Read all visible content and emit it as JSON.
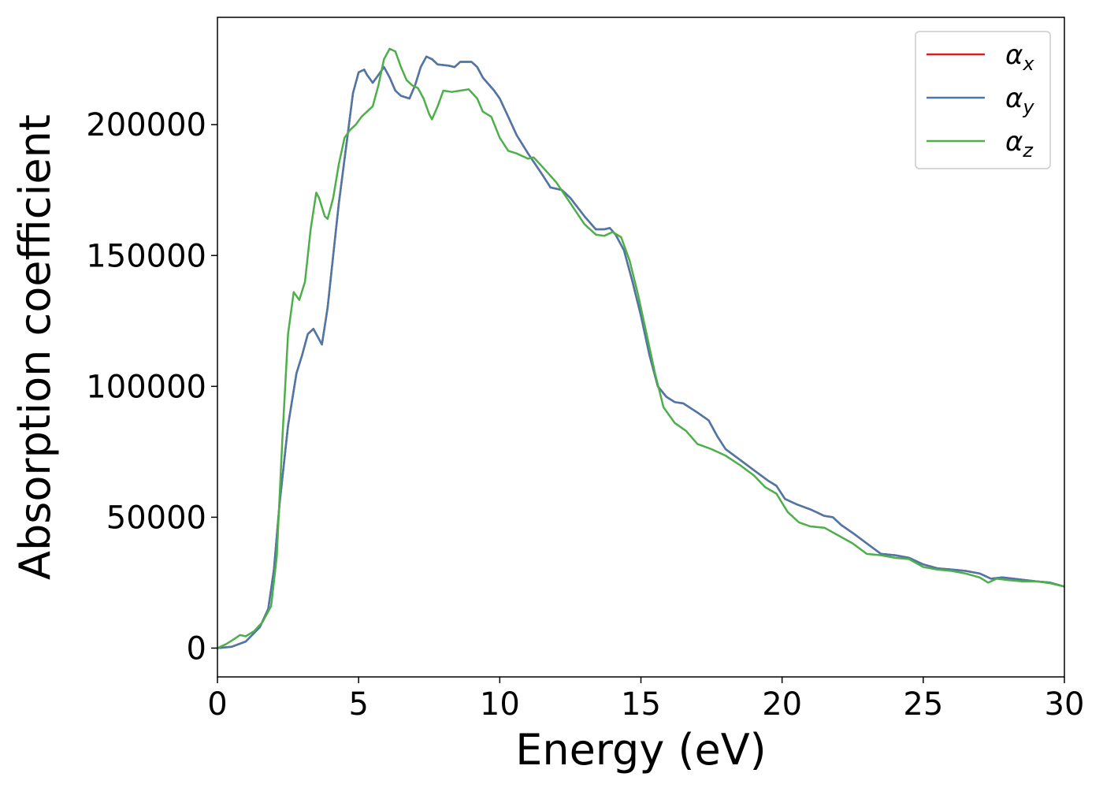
{
  "chart_data": {
    "type": "line",
    "title": "",
    "xlabel": "Energy (eV)",
    "ylabel": "Absorption coefficient",
    "xlim": [
      0,
      30
    ],
    "ylim": [
      -11000,
      241000
    ],
    "xticks": [
      0,
      5,
      10,
      15,
      20,
      25,
      30
    ],
    "yticks": [
      0,
      50000,
      100000,
      150000,
      200000
    ],
    "grid": false,
    "legend_position": "top-right",
    "series": [
      {
        "name": "α",
        "name_subscript": "x",
        "color": "#e41a1c",
        "points": [
          [
            0,
            0
          ],
          [
            0.5,
            500
          ],
          [
            1,
            2500
          ],
          [
            1.5,
            8000
          ],
          [
            1.8,
            15000
          ],
          [
            2,
            30000
          ],
          [
            2.2,
            55000
          ],
          [
            2.5,
            85000
          ],
          [
            2.8,
            105000
          ],
          [
            3,
            112000
          ],
          [
            3.2,
            120000
          ],
          [
            3.4,
            122000
          ],
          [
            3.6,
            118000
          ],
          [
            3.7,
            116000
          ],
          [
            3.9,
            130000
          ],
          [
            4.1,
            150000
          ],
          [
            4.3,
            170000
          ],
          [
            4.6,
            195000
          ],
          [
            4.8,
            212000
          ],
          [
            5,
            220000
          ],
          [
            5.2,
            221000
          ],
          [
            5.3,
            219000
          ],
          [
            5.5,
            216000
          ],
          [
            5.7,
            219000
          ],
          [
            5.9,
            222000
          ],
          [
            6.1,
            218000
          ],
          [
            6.3,
            213000
          ],
          [
            6.5,
            211000
          ],
          [
            6.8,
            210000
          ],
          [
            7,
            215000
          ],
          [
            7.2,
            222000
          ],
          [
            7.4,
            226000
          ],
          [
            7.6,
            225000
          ],
          [
            7.8,
            223000
          ],
          [
            8.2,
            222500
          ],
          [
            8.4,
            222000
          ],
          [
            8.6,
            224000
          ],
          [
            8.8,
            224000
          ],
          [
            9,
            224000
          ],
          [
            9.2,
            222000
          ],
          [
            9.4,
            218000
          ],
          [
            9.8,
            213000
          ],
          [
            10,
            210000
          ],
          [
            10.3,
            203000
          ],
          [
            10.6,
            196000
          ],
          [
            11,
            189000
          ],
          [
            11.5,
            181000
          ],
          [
            11.8,
            176000
          ],
          [
            12.2,
            175000
          ],
          [
            12.5,
            172000
          ],
          [
            13,
            165000
          ],
          [
            13.4,
            160000
          ],
          [
            13.7,
            160000
          ],
          [
            13.9,
            160500
          ],
          [
            14.1,
            158000
          ],
          [
            14.4,
            152000
          ],
          [
            14.7,
            140000
          ],
          [
            15,
            127000
          ],
          [
            15.3,
            112000
          ],
          [
            15.6,
            100000
          ],
          [
            15.9,
            96000
          ],
          [
            16.2,
            94000
          ],
          [
            16.5,
            93500
          ],
          [
            17,
            90000
          ],
          [
            17.4,
            87000
          ],
          [
            17.7,
            81000
          ],
          [
            18,
            76000
          ],
          [
            18.5,
            72000
          ],
          [
            19,
            68000
          ],
          [
            19.5,
            64000
          ],
          [
            19.8,
            62000
          ],
          [
            20.1,
            57000
          ],
          [
            20.5,
            55000
          ],
          [
            21,
            53000
          ],
          [
            21.5,
            50500
          ],
          [
            21.8,
            50000
          ],
          [
            22.1,
            47000
          ],
          [
            22.5,
            44000
          ],
          [
            23,
            40000
          ],
          [
            23.5,
            36000
          ],
          [
            24,
            35500
          ],
          [
            24.5,
            34500
          ],
          [
            25,
            32000
          ],
          [
            25.5,
            30500
          ],
          [
            26,
            30000
          ],
          [
            26.5,
            29500
          ],
          [
            27,
            28500
          ],
          [
            27.4,
            26500
          ],
          [
            27.8,
            27000
          ],
          [
            28.2,
            26500
          ],
          [
            28.6,
            26000
          ],
          [
            29,
            25500
          ],
          [
            29.5,
            25000
          ],
          [
            30,
            23500
          ]
        ]
      },
      {
        "name": "α",
        "name_subscript": "y",
        "color": "#4a78a8",
        "points": [
          [
            0,
            0
          ],
          [
            0.5,
            500
          ],
          [
            1,
            2500
          ],
          [
            1.5,
            8000
          ],
          [
            1.8,
            15000
          ],
          [
            2,
            30000
          ],
          [
            2.2,
            55000
          ],
          [
            2.5,
            85000
          ],
          [
            2.8,
            105000
          ],
          [
            3,
            112000
          ],
          [
            3.2,
            120000
          ],
          [
            3.4,
            122000
          ],
          [
            3.6,
            118000
          ],
          [
            3.7,
            116000
          ],
          [
            3.9,
            130000
          ],
          [
            4.1,
            150000
          ],
          [
            4.3,
            170000
          ],
          [
            4.6,
            195000
          ],
          [
            4.8,
            212000
          ],
          [
            5,
            220000
          ],
          [
            5.2,
            221000
          ],
          [
            5.3,
            219000
          ],
          [
            5.5,
            216000
          ],
          [
            5.7,
            219000
          ],
          [
            5.9,
            222000
          ],
          [
            6.1,
            218000
          ],
          [
            6.3,
            213000
          ],
          [
            6.5,
            211000
          ],
          [
            6.8,
            210000
          ],
          [
            7,
            215000
          ],
          [
            7.2,
            222000
          ],
          [
            7.4,
            226000
          ],
          [
            7.6,
            225000
          ],
          [
            7.8,
            223000
          ],
          [
            8.2,
            222500
          ],
          [
            8.4,
            222000
          ],
          [
            8.6,
            224000
          ],
          [
            8.8,
            224000
          ],
          [
            9,
            224000
          ],
          [
            9.2,
            222000
          ],
          [
            9.4,
            218000
          ],
          [
            9.8,
            213000
          ],
          [
            10,
            210000
          ],
          [
            10.3,
            203000
          ],
          [
            10.6,
            196000
          ],
          [
            11,
            189000
          ],
          [
            11.5,
            181000
          ],
          [
            11.8,
            176000
          ],
          [
            12.2,
            175000
          ],
          [
            12.5,
            172000
          ],
          [
            13,
            165000
          ],
          [
            13.4,
            160000
          ],
          [
            13.7,
            160000
          ],
          [
            13.9,
            160500
          ],
          [
            14.1,
            158000
          ],
          [
            14.4,
            152000
          ],
          [
            14.7,
            140000
          ],
          [
            15,
            127000
          ],
          [
            15.3,
            112000
          ],
          [
            15.6,
            100000
          ],
          [
            15.9,
            96000
          ],
          [
            16.2,
            94000
          ],
          [
            16.5,
            93500
          ],
          [
            17,
            90000
          ],
          [
            17.4,
            87000
          ],
          [
            17.7,
            81000
          ],
          [
            18,
            76000
          ],
          [
            18.5,
            72000
          ],
          [
            19,
            68000
          ],
          [
            19.5,
            64000
          ],
          [
            19.8,
            62000
          ],
          [
            20.1,
            57000
          ],
          [
            20.5,
            55000
          ],
          [
            21,
            53000
          ],
          [
            21.5,
            50500
          ],
          [
            21.8,
            50000
          ],
          [
            22.1,
            47000
          ],
          [
            22.5,
            44000
          ],
          [
            23,
            40000
          ],
          [
            23.5,
            36000
          ],
          [
            24,
            35500
          ],
          [
            24.5,
            34500
          ],
          [
            25,
            32000
          ],
          [
            25.5,
            30500
          ],
          [
            26,
            30000
          ],
          [
            26.5,
            29500
          ],
          [
            27,
            28500
          ],
          [
            27.4,
            26500
          ],
          [
            27.8,
            27000
          ],
          [
            28.2,
            26500
          ],
          [
            28.6,
            26000
          ],
          [
            29,
            25500
          ],
          [
            29.5,
            25000
          ],
          [
            30,
            23500
          ]
        ]
      },
      {
        "name": "α",
        "name_subscript": "z",
        "color": "#4daf4a",
        "points": [
          [
            0,
            0
          ],
          [
            0.3,
            1500
          ],
          [
            0.6,
            3500
          ],
          [
            0.8,
            5000
          ],
          [
            1,
            4500
          ],
          [
            1.3,
            6500
          ],
          [
            1.6,
            10000
          ],
          [
            1.9,
            16000
          ],
          [
            2.1,
            35000
          ],
          [
            2.3,
            80000
          ],
          [
            2.5,
            120000
          ],
          [
            2.7,
            136000
          ],
          [
            2.9,
            133000
          ],
          [
            3.1,
            140000
          ],
          [
            3.3,
            160000
          ],
          [
            3.5,
            174000
          ],
          [
            3.6,
            172000
          ],
          [
            3.8,
            165000
          ],
          [
            3.9,
            164000
          ],
          [
            4.1,
            172000
          ],
          [
            4.3,
            185000
          ],
          [
            4.5,
            195000
          ],
          [
            4.7,
            198000
          ],
          [
            4.9,
            200000
          ],
          [
            5.1,
            203000
          ],
          [
            5.3,
            205000
          ],
          [
            5.5,
            207000
          ],
          [
            5.7,
            215000
          ],
          [
            5.9,
            225000
          ],
          [
            6.1,
            229000
          ],
          [
            6.3,
            228000
          ],
          [
            6.5,
            222000
          ],
          [
            6.7,
            217000
          ],
          [
            6.9,
            215000
          ],
          [
            7.1,
            214000
          ],
          [
            7.3,
            210000
          ],
          [
            7.5,
            204000
          ],
          [
            7.6,
            202000
          ],
          [
            7.8,
            207000
          ],
          [
            8,
            213000
          ],
          [
            8.3,
            212500
          ],
          [
            8.6,
            213000
          ],
          [
            8.9,
            213500
          ],
          [
            9.2,
            210000
          ],
          [
            9.4,
            205000
          ],
          [
            9.7,
            203000
          ],
          [
            10,
            195000
          ],
          [
            10.3,
            190000
          ],
          [
            10.6,
            189000
          ],
          [
            11,
            187000
          ],
          [
            11.2,
            187500
          ],
          [
            11.5,
            184000
          ],
          [
            12,
            178000
          ],
          [
            12.5,
            170000
          ],
          [
            13,
            162000
          ],
          [
            13.4,
            158000
          ],
          [
            13.7,
            157500
          ],
          [
            14,
            159000
          ],
          [
            14.3,
            157000
          ],
          [
            14.6,
            148000
          ],
          [
            14.9,
            135000
          ],
          [
            15.2,
            120000
          ],
          [
            15.5,
            105000
          ],
          [
            15.8,
            92000
          ],
          [
            16.2,
            86000
          ],
          [
            16.6,
            83000
          ],
          [
            17,
            78000
          ],
          [
            17.5,
            76000
          ],
          [
            18,
            73500
          ],
          [
            18.5,
            70000
          ],
          [
            19,
            66000
          ],
          [
            19.4,
            61500
          ],
          [
            19.8,
            59000
          ],
          [
            20.2,
            52000
          ],
          [
            20.6,
            48000
          ],
          [
            21,
            46500
          ],
          [
            21.5,
            46000
          ],
          [
            22,
            43000
          ],
          [
            22.5,
            40000
          ],
          [
            23,
            36000
          ],
          [
            23.5,
            35500
          ],
          [
            24,
            34500
          ],
          [
            24.5,
            34000
          ],
          [
            25,
            31000
          ],
          [
            25.5,
            30000
          ],
          [
            26,
            29500
          ],
          [
            26.5,
            28500
          ],
          [
            27,
            27000
          ],
          [
            27.3,
            25000
          ],
          [
            27.6,
            26500
          ],
          [
            28,
            26000
          ],
          [
            28.5,
            25500
          ],
          [
            29,
            25500
          ],
          [
            29.5,
            24800
          ],
          [
            30,
            23500
          ]
        ]
      }
    ]
  }
}
